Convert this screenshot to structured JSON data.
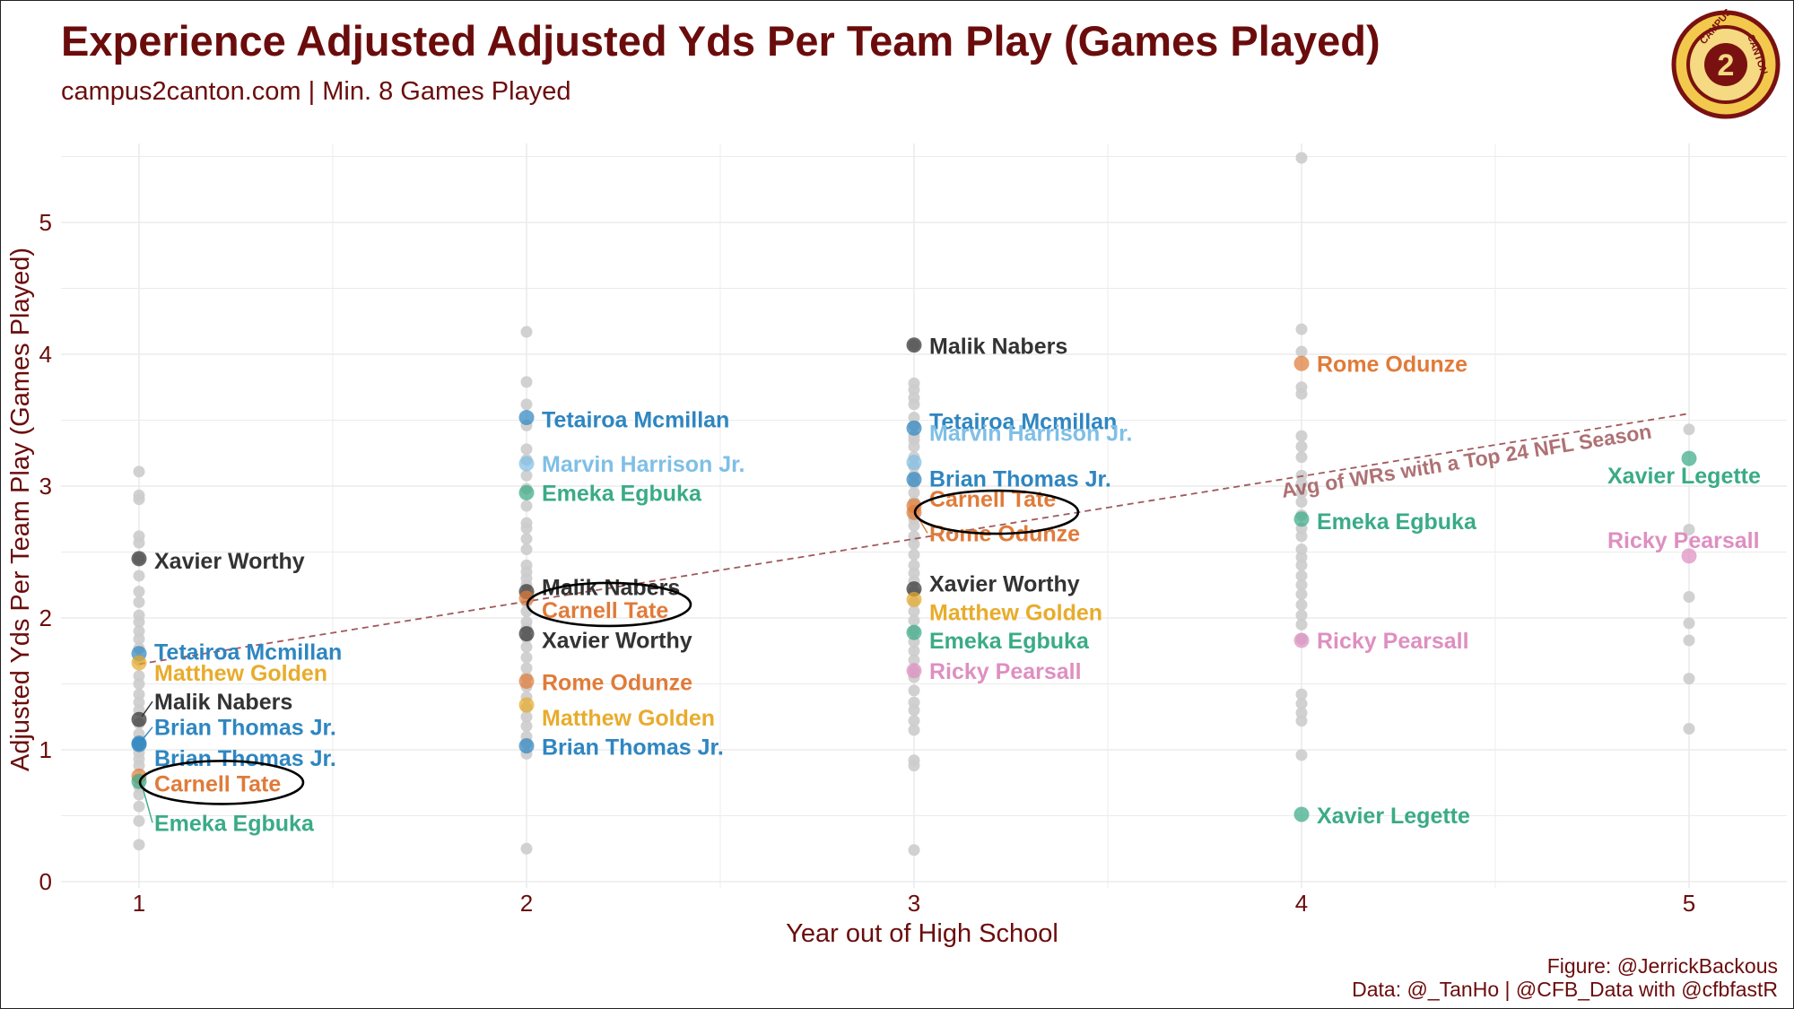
{
  "header": {
    "title": "Experience Adjusted Adjusted Yds Per Team Play (Games Played)",
    "subtitle": "campus2canton.com | Min. 8 Games Played"
  },
  "footer": {
    "figure_credit": "Figure: @JerrickBackous",
    "data_credit": "Data: @_TanHo | @CFB_Data with @cfbfastR"
  },
  "logo": {
    "top_text": "CAMPUS",
    "bottom_text": "CANTON",
    "center_text": "2"
  },
  "colors": {
    "maroon": "#6b0c0c",
    "grid": "#ebebeb",
    "grey_points": "#cccccc",
    "reference_line": "#a0595c"
  },
  "chart_data": {
    "type": "scatter",
    "title": "Experience Adjusted Adjusted Yds Per Team Play (Games Played)",
    "xlabel": "Year out of High School",
    "ylabel": "Adjusted Yds Per Team Play (Games Played)",
    "xlim": [
      0.8,
      5.25
    ],
    "ylim": [
      0,
      5.55
    ],
    "x_ticks": [
      1,
      2,
      3,
      4,
      5
    ],
    "y_ticks": [
      0,
      1,
      2,
      3,
      4,
      5
    ],
    "reference_line": {
      "label": "Avg of WRs with a Top 24 NFL Season",
      "x": [
        1,
        5
      ],
      "y": [
        1.65,
        3.55
      ]
    },
    "background_points": [
      {
        "x": 1,
        "y": [
          3.11,
          2.93,
          2.9,
          2.62,
          2.57,
          2.45,
          2.32,
          2.2,
          2.12,
          2.02,
          1.97,
          1.9,
          1.84,
          1.77,
          1.68,
          1.56,
          1.5,
          1.42,
          1.36,
          1.3,
          1.2,
          1.12,
          1.05,
          0.98,
          0.93,
          0.88,
          0.72,
          0.66,
          0.57,
          0.46,
          0.28
        ]
      },
      {
        "x": 2,
        "y": [
          4.17,
          3.79,
          3.62,
          3.46,
          3.28,
          3.2,
          3.08,
          2.98,
          2.85,
          2.72,
          2.68,
          2.6,
          2.52,
          2.4,
          2.35,
          2.3,
          2.25,
          2.18,
          2.12,
          2.05,
          1.97,
          1.92,
          1.85,
          1.78,
          1.7,
          1.62,
          1.55,
          1.48,
          1.4,
          1.32,
          1.25,
          1.18,
          1.1,
          1.05,
          0.97,
          0.25
        ]
      },
      {
        "x": 3,
        "y": [
          4.07,
          3.78,
          3.73,
          3.67,
          3.62,
          3.52,
          3.46,
          3.38,
          3.35,
          3.3,
          3.22,
          3.15,
          3.08,
          3.02,
          2.95,
          2.88,
          2.8,
          2.75,
          2.7,
          2.62,
          2.56,
          2.48,
          2.4,
          2.34,
          2.28,
          2.2,
          2.12,
          2.05,
          1.98,
          1.9,
          1.82,
          1.75,
          1.68,
          1.6,
          1.55,
          1.45,
          1.36,
          1.3,
          1.22,
          1.15,
          0.92,
          0.88,
          0.24
        ]
      },
      {
        "x": 4,
        "y": [
          5.49,
          4.19,
          4.02,
          3.75,
          3.7,
          3.38,
          3.3,
          3.22,
          3.08,
          3.02,
          2.95,
          2.88,
          2.78,
          2.68,
          2.62,
          2.52,
          2.46,
          2.4,
          2.32,
          2.25,
          2.18,
          2.1,
          2.02,
          1.95,
          1.84,
          1.42,
          1.35,
          1.28,
          1.22,
          0.96
        ]
      },
      {
        "x": 5,
        "y": [
          3.43,
          2.67,
          2.16,
          1.96,
          1.83,
          1.54,
          1.16
        ]
      }
    ],
    "players": [
      {
        "name": "Xavier Worthy",
        "color": "#333333",
        "points": [
          {
            "x": 1,
            "y": 2.45
          },
          {
            "x": 2,
            "y": 1.88
          },
          {
            "x": 3,
            "y": 2.22
          }
        ]
      },
      {
        "name": "Tetairoa Mcmillan",
        "color": "#2e86c1",
        "points": [
          {
            "x": 1,
            "y": 1.73
          },
          {
            "x": 2,
            "y": 3.52
          },
          {
            "x": 3,
            "y": 3.44
          }
        ]
      },
      {
        "name": "Matthew Golden",
        "color": "#e8ac2c",
        "points": [
          {
            "x": 1,
            "y": 1.66
          },
          {
            "x": 2,
            "y": 1.34
          },
          {
            "x": 3,
            "y": 2.14
          }
        ]
      },
      {
        "name": "Malik Nabers",
        "color": "#333333",
        "points": [
          {
            "x": 1,
            "y": 1.23
          },
          {
            "x": 2,
            "y": 2.2
          },
          {
            "x": 3,
            "y": 4.07
          }
        ]
      },
      {
        "name": "Brian Thomas Jr.",
        "color": "#2e86c1",
        "points": [
          {
            "x": 1,
            "y": 1.05
          },
          {
            "x": 1,
            "y": 1.04
          },
          {
            "x": 2,
            "y": 1.03
          },
          {
            "x": 3,
            "y": 3.05
          }
        ]
      },
      {
        "name": "Carnell Tate",
        "color": "#e07b39",
        "points": [
          {
            "x": 1,
            "y": 0.8
          },
          {
            "x": 2,
            "y": 2.15
          },
          {
            "x": 3,
            "y": 2.85
          }
        ]
      },
      {
        "name": "Emeka Egbuka",
        "color": "#3aab87",
        "points": [
          {
            "x": 1,
            "y": 0.76
          },
          {
            "x": 2,
            "y": 2.95
          },
          {
            "x": 3,
            "y": 1.89
          },
          {
            "x": 4,
            "y": 2.75
          }
        ]
      },
      {
        "name": "Marvin Harrison Jr.",
        "color": "#7fbfe6",
        "points": [
          {
            "x": 2,
            "y": 3.17
          },
          {
            "x": 3,
            "y": 3.18
          }
        ]
      },
      {
        "name": "Rome Odunze",
        "color": "#e07b39",
        "points": [
          {
            "x": 2,
            "y": 1.52
          },
          {
            "x": 3,
            "y": 2.8
          },
          {
            "x": 4,
            "y": 3.93
          }
        ]
      },
      {
        "name": "Ricky Pearsall",
        "color": "#de8fc0",
        "points": [
          {
            "x": 3,
            "y": 1.6
          },
          {
            "x": 4,
            "y": 1.83
          },
          {
            "x": 5,
            "y": 2.47
          }
        ]
      },
      {
        "name": "Xavier Legette",
        "color": "#3aab87",
        "points": [
          {
            "x": 4,
            "y": 0.51
          },
          {
            "x": 5,
            "y": 3.21
          }
        ]
      }
    ],
    "highlighted_player": "Carnell Tate"
  }
}
